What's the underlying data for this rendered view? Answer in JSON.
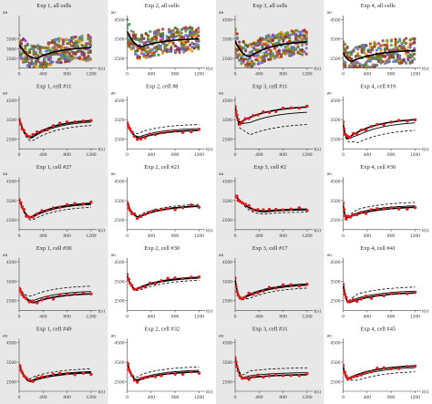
{
  "chart_data": {
    "type": "line",
    "layout": "5 rows x 4 columns of small-multiple panels",
    "colors": {
      "data_points": "#e41a1c",
      "model_curve": "#000000",
      "shaded_background": "#e8e8e8",
      "multi_cell_palette": [
        "#6b8e23",
        "#8b4513",
        "#4169e1",
        "#9932cc",
        "#ff8c00",
        "#2e8b57",
        "#b22222",
        "#708090"
      ]
    },
    "axis": {
      "ylabel": "au",
      "xlabel": "t(s)",
      "x_ticks": [
        0,
        400,
        800,
        1200
      ],
      "y_ticks": [
        2500,
        3500,
        4500
      ],
      "xlim": [
        0,
        1300
      ],
      "ylim": [
        2000,
        4700
      ]
    },
    "panels": [
      {
        "title": "Exp 1, all cells",
        "kind": "all",
        "shaded": true,
        "y_ticks": [
          "2500",
          "3000",
          "3500"
        ],
        "start": 3200,
        "min": 2500,
        "tmin": 300,
        "end": 3050
      },
      {
        "title": "Exp 2, all cells",
        "kind": "all",
        "shaded": false,
        "y_ticks": [
          "2500",
          "3500",
          "4500"
        ],
        "start": 3900,
        "min": 3100,
        "tmin": 250,
        "end": 3500
      },
      {
        "title": "Exp 3, all cells",
        "kind": "all",
        "shaded": true,
        "y_ticks": [
          "2500",
          "3500",
          "4500"
        ],
        "start": 3400,
        "min": 2600,
        "tmin": 250,
        "end": 3350
      },
      {
        "title": "Exp 4, all cells",
        "kind": "all",
        "shaded": false,
        "y_ticks": [
          "2500",
          "3500",
          "4500"
        ],
        "start": 2800,
        "min": 2350,
        "tmin": 150,
        "end": 2900
      },
      {
        "title": "Exp 1, cell #11",
        "kind": "cell",
        "shaded": true,
        "y_ticks": [
          "2500",
          "3500",
          "4500"
        ],
        "start": 3550,
        "min": 2600,
        "tmin": 200,
        "end": 3450,
        "dash_offset": -250
      },
      {
        "title": "Exp 2, cell #8",
        "kind": "cell",
        "shaded": false,
        "y_ticks": [
          "2500",
          "3500",
          "4500"
        ],
        "start": 3300,
        "min": 2550,
        "tmin": 220,
        "end": 2950,
        "dash_offset": 300
      },
      {
        "title": "Exp 3, cell #11",
        "kind": "cell",
        "shaded": true,
        "y_ticks": [
          "2500",
          "3500",
          "4500"
        ],
        "start": 4250,
        "min": 3350,
        "tmin": 80,
        "end": 4150,
        "dash_offset": -900
      },
      {
        "title": "Exp 4, cell #19",
        "kind": "cell",
        "shaded": false,
        "y_ticks": [
          "2500",
          "3500",
          "4500"
        ],
        "start": 3300,
        "min": 2550,
        "tmin": 80,
        "end": 3500,
        "dash_offset": -550
      },
      {
        "title": "Exp 1, cell #27",
        "kind": "cell",
        "shaded": true,
        "y_ticks": [
          "2500",
          "3500",
          "4500"
        ],
        "start": 3600,
        "min": 2650,
        "tmin": 200,
        "end": 3350,
        "dash_offset": -200
      },
      {
        "title": "Exp 2, cell #21",
        "kind": "cell",
        "shaded": false,
        "y_ticks": [
          "2500",
          "3500",
          "4500"
        ],
        "start": 3400,
        "min": 2650,
        "tmin": 200,
        "end": 3200,
        "dash_offset": 100
      },
      {
        "title": "Exp 3, cell #2",
        "kind": "cell",
        "shaded": true,
        "y_ticks": [
          "2500",
          "3500",
          "4500"
        ],
        "start": 3750,
        "min": 2950,
        "tmin": 500,
        "end": 3050,
        "dash_offset": -150
      },
      {
        "title": "Exp 4, cell #30",
        "kind": "cell",
        "shaded": false,
        "y_ticks": [
          "2500",
          "3500",
          "4500"
        ],
        "start": 3300,
        "min": 2600,
        "tmin": 60,
        "end": 3150,
        "dash_offset": 250
      },
      {
        "title": "Exp 1, cell #30",
        "kind": "cell",
        "shaded": true,
        "y_ticks": [
          "2500",
          "3500",
          "4500"
        ],
        "start": 3200,
        "min": 2400,
        "tmin": 250,
        "end": 2850,
        "dash_offset": 400
      },
      {
        "title": "Exp 2, cell #30",
        "kind": "cell",
        "shaded": false,
        "y_ticks": [
          "2500",
          "3500",
          "4500"
        ],
        "start": 3800,
        "min": 3100,
        "tmin": 150,
        "end": 3700,
        "dash_offset": -150
      },
      {
        "title": "Exp 3, cell #17",
        "kind": "cell",
        "shaded": true,
        "y_ticks": [
          "2500",
          "3500",
          "4500"
        ],
        "start": 3600,
        "min": 2600,
        "tmin": 100,
        "end": 3350,
        "dash_offset": -200
      },
      {
        "title": "Exp 4, cell #41",
        "kind": "cell",
        "shaded": false,
        "y_ticks": [
          "2500",
          "3500",
          "4500"
        ],
        "start": 3400,
        "min": 2400,
        "tmin": 100,
        "end": 2900,
        "dash_offset": 300
      },
      {
        "title": "Exp 1, cell #49",
        "kind": "cell",
        "shaded": true,
        "y_ticks": [
          "2500",
          "3500",
          "4500"
        ],
        "start": 3400,
        "min": 2500,
        "tmin": 200,
        "end": 2950,
        "dash_offset": 200
      },
      {
        "title": "Exp 2, cell #32",
        "kind": "cell",
        "shaded": false,
        "y_ticks": [
          "2500",
          "3500",
          "4500"
        ],
        "start": 3500,
        "min": 2550,
        "tmin": 180,
        "end": 3000,
        "dash_offset": 250
      },
      {
        "title": "Exp 3, cell #31",
        "kind": "cell",
        "shaded": true,
        "y_ticks": [
          "2500",
          "3500",
          "4500"
        ],
        "start": 3700,
        "min": 2650,
        "tmin": 150,
        "end": 2850,
        "dash_offset": 350
      },
      {
        "title": "Exp 4, cell #45",
        "kind": "cell",
        "shaded": false,
        "y_ticks": [
          "2500",
          "3500",
          "4500"
        ],
        "start": 3300,
        "min": 2650,
        "tmin": 80,
        "end": 3300,
        "dash_offset": -300
      }
    ]
  }
}
